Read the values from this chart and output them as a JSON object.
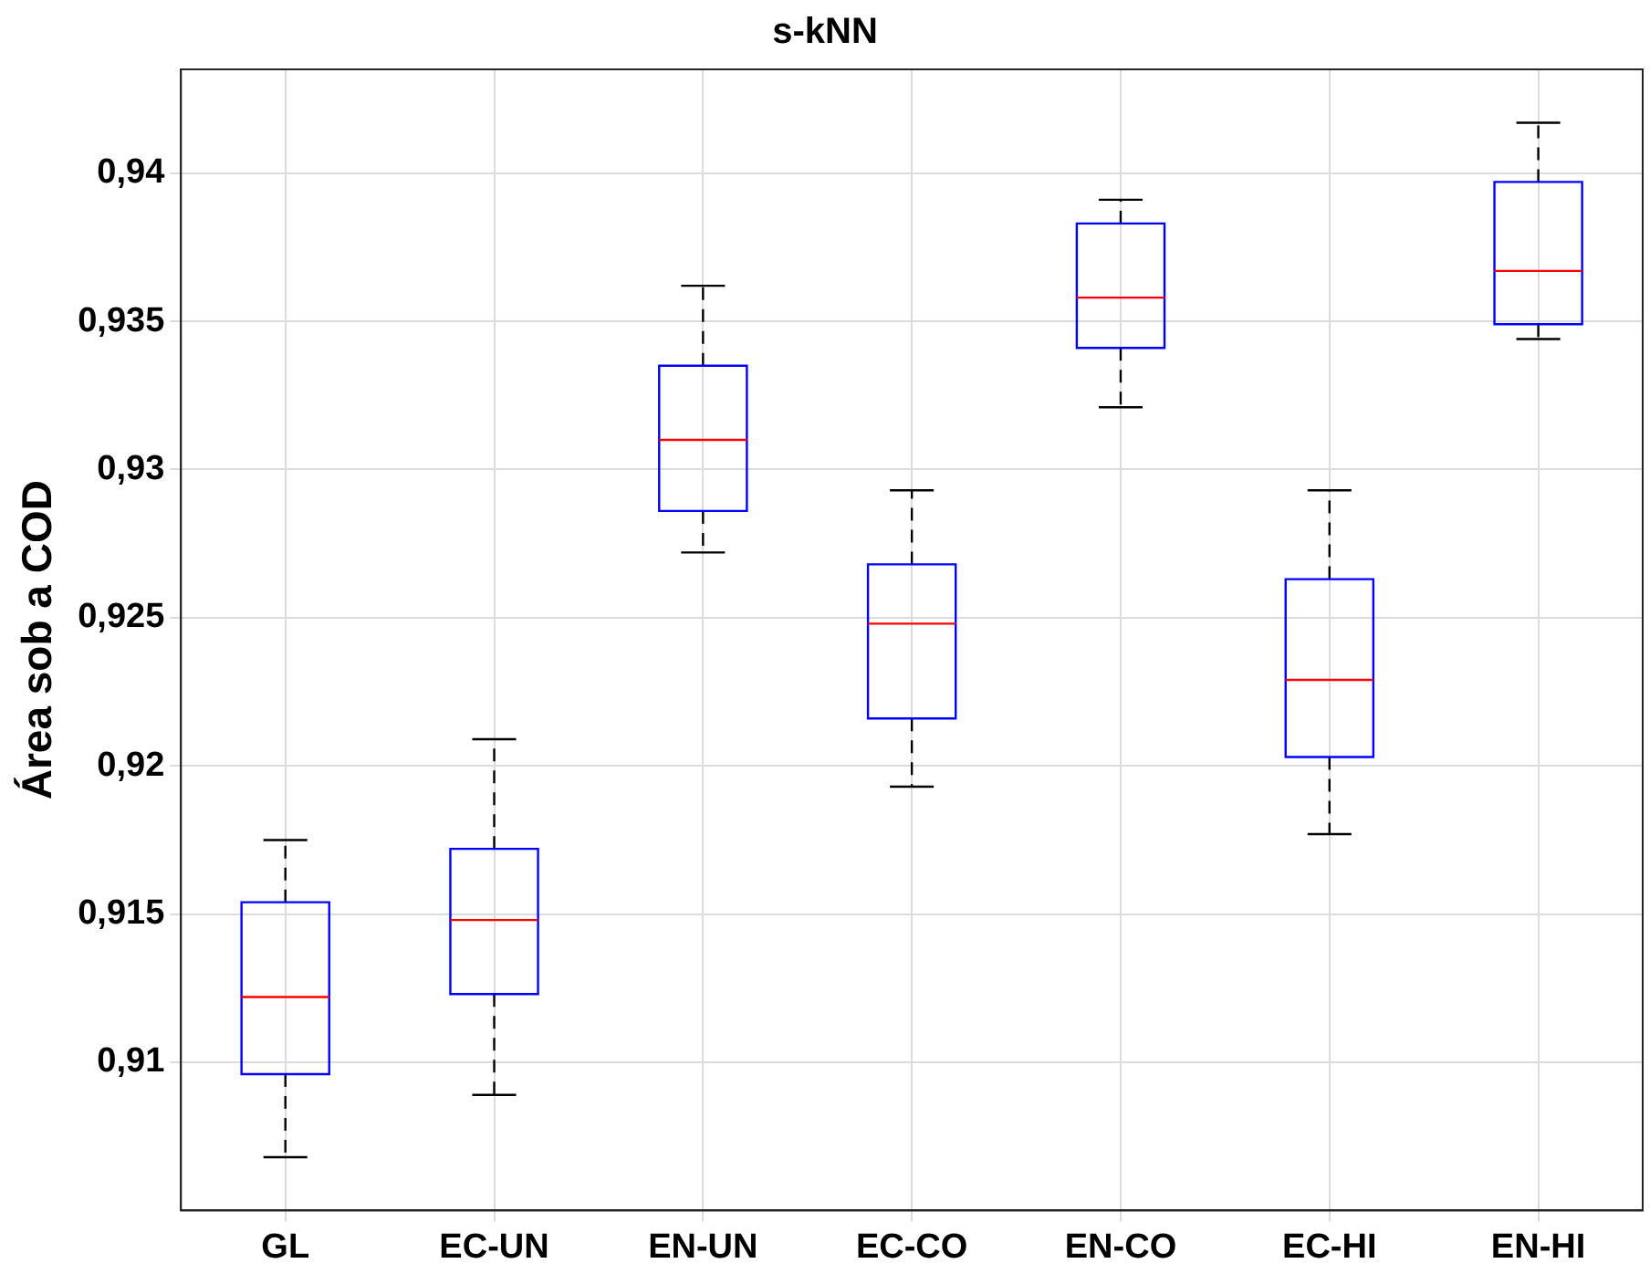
{
  "chart_data": {
    "type": "box",
    "title": "s-kNN",
    "ylabel": "Área sob a COD",
    "categories": [
      "GL",
      "EC-UN",
      "EN-UN",
      "EC-CO",
      "EN-CO",
      "EC-HI",
      "EN-HI"
    ],
    "boxes": [
      {
        "low": 0.9068,
        "q1": 0.9096,
        "median": 0.9122,
        "q3": 0.9154,
        "high": 0.9175
      },
      {
        "low": 0.9089,
        "q1": 0.9123,
        "median": 0.9148,
        "q3": 0.9172,
        "high": 0.9209
      },
      {
        "low": 0.9272,
        "q1": 0.9286,
        "median": 0.931,
        "q3": 0.9335,
        "high": 0.9362
      },
      {
        "low": 0.9193,
        "q1": 0.9216,
        "median": 0.9248,
        "q3": 0.9268,
        "high": 0.9293
      },
      {
        "low": 0.9321,
        "q1": 0.9341,
        "median": 0.9358,
        "q3": 0.9383,
        "high": 0.9391
      },
      {
        "low": 0.9177,
        "q1": 0.9203,
        "median": 0.9229,
        "q3": 0.9263,
        "high": 0.9293
      },
      {
        "low": 0.9344,
        "q1": 0.9349,
        "median": 0.9367,
        "q3": 0.9397,
        "high": 0.9417
      }
    ],
    "color": "#0000ff",
    "line_style": "dashed",
    "ylim": [
      0.905,
      0.9435
    ],
    "yticks": [
      {
        "value": 0.91,
        "label": "0,91"
      },
      {
        "value": 0.915,
        "label": "0,915"
      },
      {
        "value": 0.92,
        "label": "0,92"
      },
      {
        "value": 0.925,
        "label": "0,925"
      },
      {
        "value": 0.93,
        "label": "0,93"
      },
      {
        "value": 0.935,
        "label": "0,935"
      },
      {
        "value": 0.94,
        "label": "0,94"
      }
    ],
    "grid": true,
    "legend": false
  }
}
